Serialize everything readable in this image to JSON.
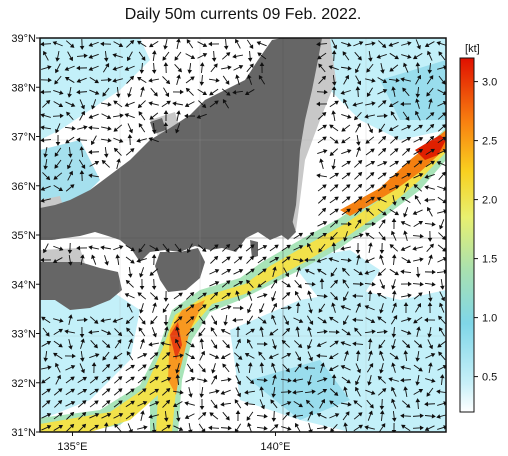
{
  "title": "Daily 50m currents 09 Feb. 2022.",
  "lat_labels": [
    {
      "lat": 39,
      "text": "39°N"
    },
    {
      "lat": 38,
      "text": "38°N"
    },
    {
      "lat": 37,
      "text": "37°N"
    },
    {
      "lat": 36,
      "text": "36°N"
    },
    {
      "lat": 35,
      "text": "35°N"
    },
    {
      "lat": 34,
      "text": "34°N"
    },
    {
      "lat": 33,
      "text": "33°N"
    },
    {
      "lat": 32,
      "text": "32°N"
    },
    {
      "lat": 31,
      "text": "31°N"
    }
  ],
  "lon_labels": [
    {
      "lon": 135,
      "text": "135°E"
    },
    {
      "lon": 140,
      "text": "140°E"
    }
  ],
  "extent": {
    "lon_min": 134.2,
    "lon_max": 144.2,
    "lat_min": 31,
    "lat_max": 39
  },
  "colorbar": {
    "unit": "kt",
    "ticks": [
      {
        "v": 0.5,
        "text": "0.5"
      },
      {
        "v": 1.0,
        "text": "1.0"
      },
      {
        "v": 1.5,
        "text": "1.5"
      },
      {
        "v": 2.0,
        "text": "2.0"
      },
      {
        "v": 2.5,
        "text": "2.5"
      },
      {
        "v": 3.0,
        "text": "3.0"
      }
    ],
    "range": [
      0.2,
      3.2
    ]
  },
  "colors": {
    "land": "#666666",
    "shelf": "#c8c8c8",
    "sea": "#ffffff"
  }
}
